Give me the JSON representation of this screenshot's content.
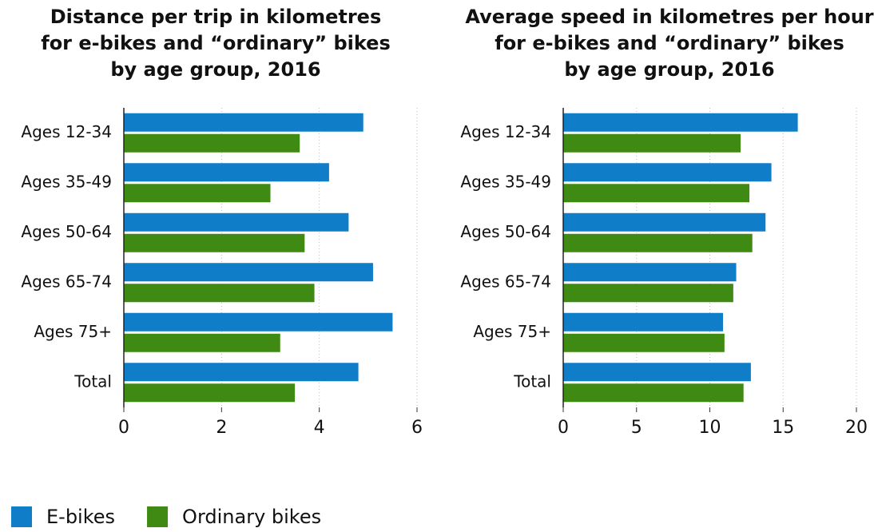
{
  "chart_data": [
    {
      "type": "barh",
      "title": [
        "Distance per trip in kilometres",
        "for e-bikes and “ordinary” bikes",
        "by age group, 2016"
      ],
      "categories": [
        "Ages 12-34",
        "Ages 35-49",
        "Ages 50-64",
        "Ages 65-74",
        "Ages 75+",
        "Total"
      ],
      "series": [
        {
          "name": "E-bikes",
          "color": "#0f7dc8",
          "values": [
            4.9,
            4.2,
            4.6,
            5.1,
            5.5,
            4.8
          ]
        },
        {
          "name": "Ordinary bikes",
          "color": "#3f8a12",
          "values": [
            3.6,
            3.0,
            3.7,
            3.9,
            3.2,
            3.5
          ]
        }
      ],
      "xlim": [
        0,
        6
      ],
      "xticks": [
        0,
        2,
        4,
        6
      ],
      "grid": true
    },
    {
      "type": "barh",
      "title": [
        "Average speed in kilometres per hour",
        "for e-bikes and “ordinary” bikes",
        "by age group, 2016"
      ],
      "categories": [
        "Ages 12-34",
        "Ages 35-49",
        "Ages 50-64",
        "Ages 65-74",
        "Ages 75+",
        "Total"
      ],
      "series": [
        {
          "color": "#0f7dc8",
          "values": [
            16.0,
            14.2,
            13.8,
            11.8,
            10.9,
            12.8
          ]
        },
        {
          "color": "#3f8a12",
          "values": [
            12.1,
            12.7,
            12.9,
            11.6,
            11.0,
            12.3
          ]
        }
      ],
      "xlim": [
        0,
        20
      ],
      "xticks": [
        0,
        5,
        10,
        15,
        20
      ],
      "grid": true
    }
  ]
}
